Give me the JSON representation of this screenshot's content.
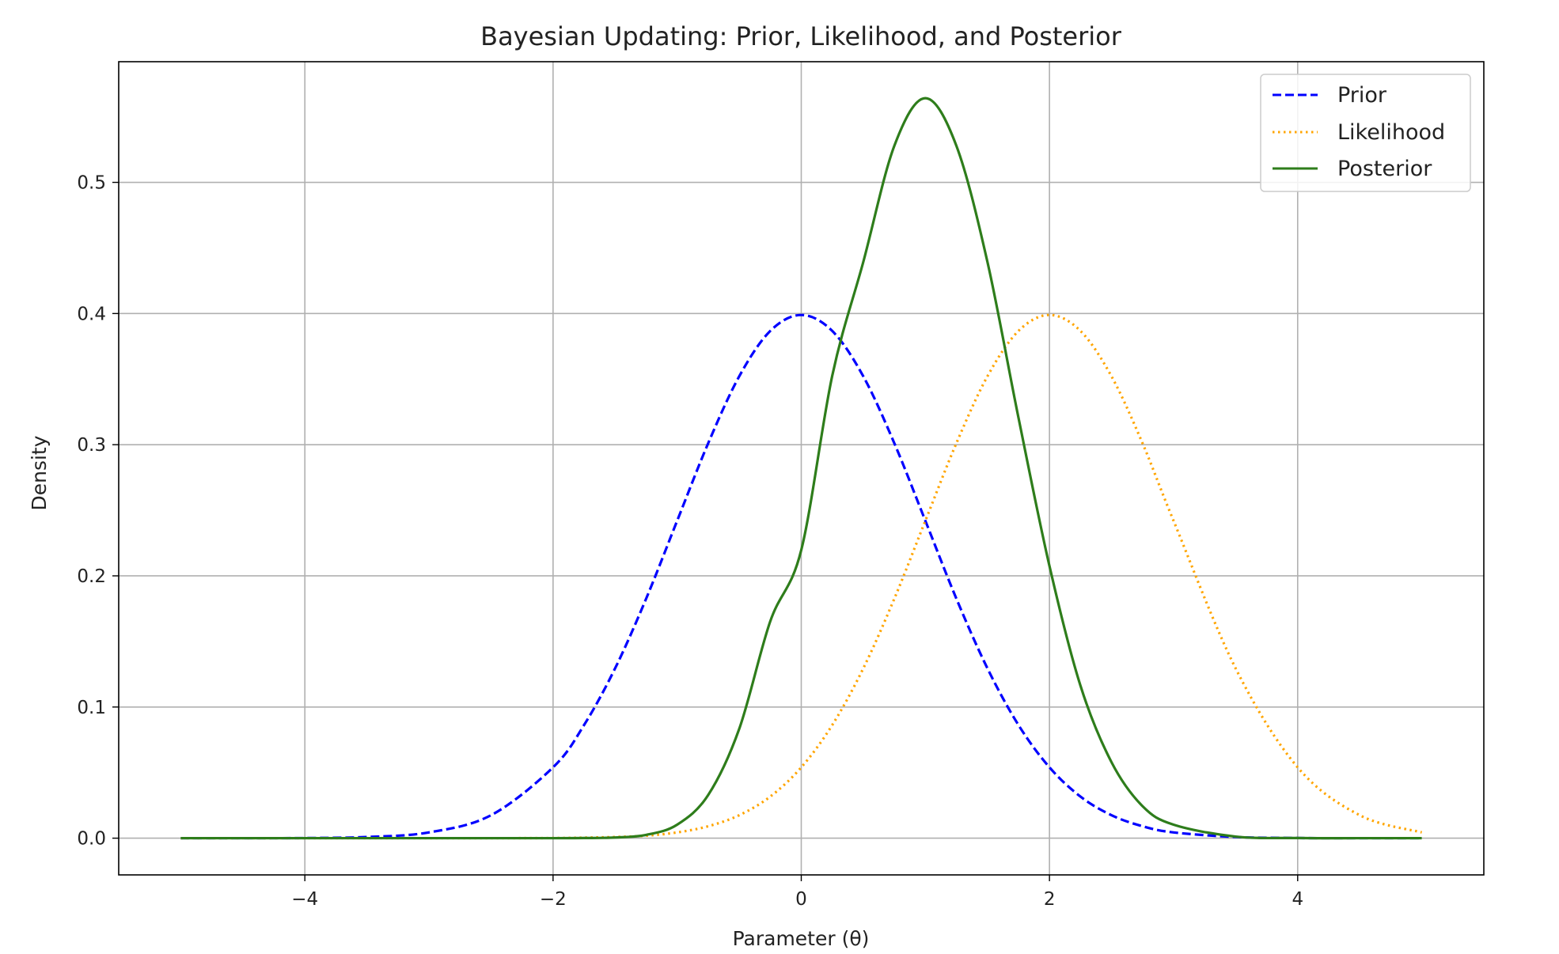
{
  "chart_data": {
    "type": "line",
    "title": "Bayesian Updating: Prior, Likelihood, and Posterior",
    "xlabel": "Parameter (θ)",
    "ylabel": "Density",
    "xlim": [
      -5.5,
      5.5
    ],
    "ylim": [
      -0.028,
      0.592
    ],
    "xticks": [
      -4,
      -2,
      0,
      2,
      4
    ],
    "xtick_labels": [
      "−4",
      "−2",
      "0",
      "2",
      "4"
    ],
    "yticks": [
      0.0,
      0.1,
      0.2,
      0.3,
      0.4,
      0.5
    ],
    "ytick_labels": [
      "0.0",
      "0.1",
      "0.2",
      "0.3",
      "0.4",
      "0.5"
    ],
    "grid": true,
    "legend_position": "top-right",
    "x": [
      -5.0,
      -4.5,
      -4.0,
      -3.5,
      -3.0,
      -2.5,
      -2.0,
      -1.75,
      -1.5,
      -1.25,
      -1.0,
      -0.75,
      -0.5,
      -0.25,
      0.0,
      0.25,
      0.5,
      0.75,
      1.0,
      1.25,
      1.5,
      1.75,
      2.0,
      2.25,
      2.5,
      2.75,
      3.0,
      3.5,
      4.0,
      4.5,
      5.0
    ],
    "series": [
      {
        "name": "Prior",
        "color": "#0000ff",
        "style": "dashed",
        "values": [
          0.0,
          0.0,
          0.0001,
          0.0009,
          0.0044,
          0.0175,
          0.054,
          0.0863,
          0.1295,
          0.1826,
          0.242,
          0.3011,
          0.3521,
          0.3867,
          0.3989,
          0.3867,
          0.3521,
          0.3011,
          0.242,
          0.1826,
          0.1295,
          0.0863,
          0.054,
          0.0317,
          0.0175,
          0.0091,
          0.0044,
          0.0009,
          0.0001,
          0.0,
          0.0
        ]
      },
      {
        "name": "Likelihood",
        "color": "#ffa500",
        "style": "dotted",
        "values": [
          0.0,
          0.0,
          0.0,
          0.0,
          0.0,
          0.0,
          0.0001,
          0.0004,
          0.0009,
          0.0019,
          0.0044,
          0.0091,
          0.0175,
          0.0317,
          0.054,
          0.0863,
          0.1295,
          0.1826,
          0.242,
          0.3011,
          0.3521,
          0.3867,
          0.3989,
          0.3867,
          0.3521,
          0.3011,
          0.242,
          0.1295,
          0.054,
          0.0175,
          0.0044
        ]
      },
      {
        "name": "Posterior",
        "color": "#2e7d1b",
        "style": "solid",
        "values": [
          0.0,
          0.0,
          0.0,
          0.0,
          0.0,
          0.0,
          0.0,
          0.0001,
          0.0005,
          0.0025,
          0.0103,
          0.0329,
          0.0833,
          0.1653,
          0.2197,
          0.3527,
          0.4394,
          0.5279,
          0.5642,
          0.5279,
          0.4394,
          0.3207,
          0.2075,
          0.1162,
          0.0579,
          0.0244,
          0.0103,
          0.0012,
          0.0001,
          0.0,
          0.0
        ]
      }
    ]
  }
}
